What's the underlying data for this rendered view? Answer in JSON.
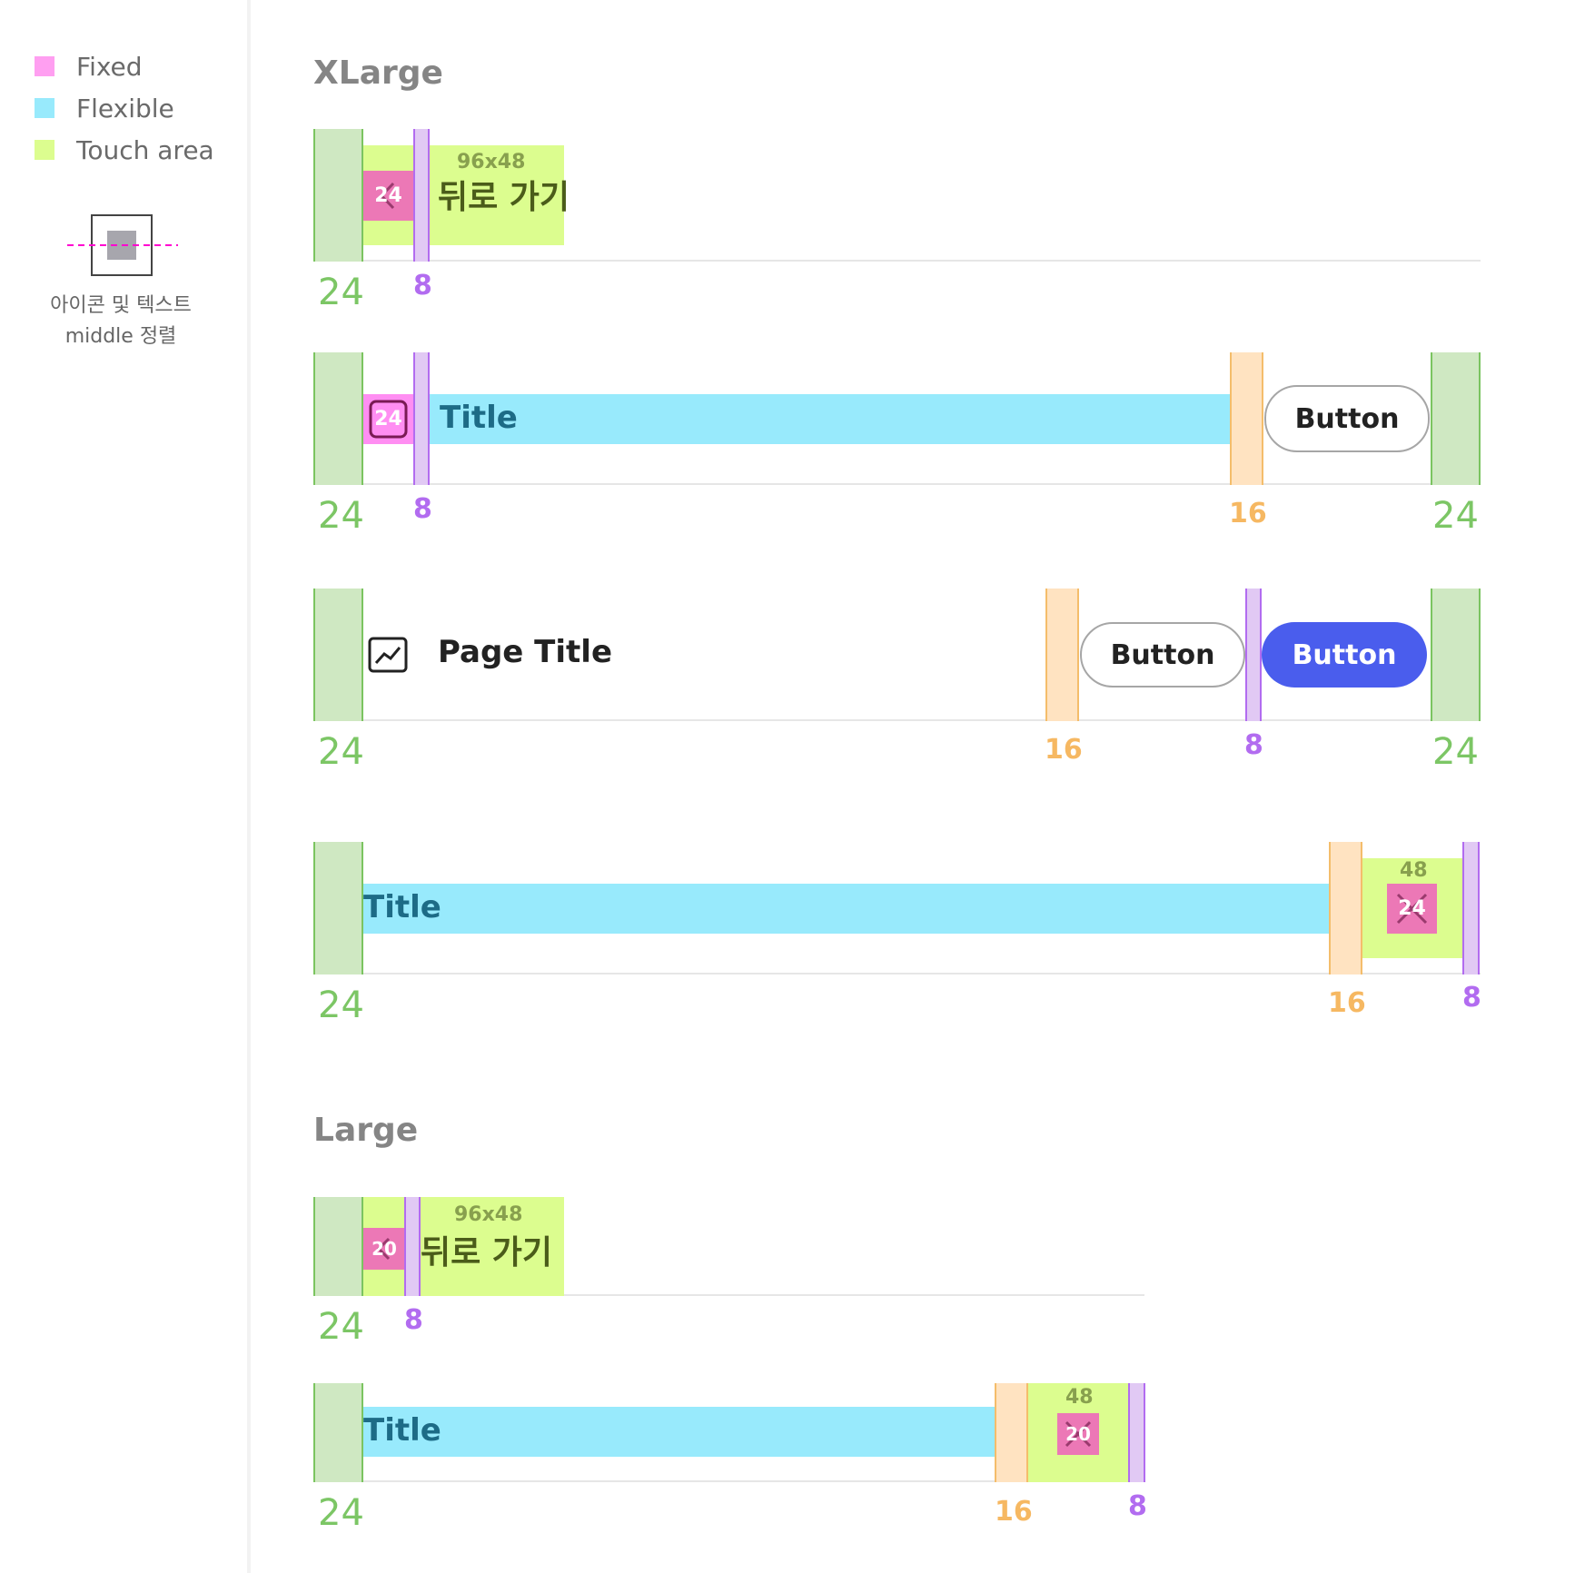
{
  "legend": {
    "items": [
      {
        "label": "Fixed",
        "color": "#ff9ff1"
      },
      {
        "label": "Flexible",
        "color": "#98eafc"
      },
      {
        "label": "Touch area",
        "color": "#dcfd8f"
      }
    ],
    "align_note_line1": "아이콘 및 텍스트",
    "align_note_line2": "middle 정렬"
  },
  "sections": {
    "xlarge": "XLarge",
    "large": "Large"
  },
  "xlarge": {
    "row1": {
      "padding": "24",
      "gap": "8",
      "touch_size": "96x48",
      "icon_size": "24",
      "label": "뒤로 가기"
    },
    "row2": {
      "padding_left": "24",
      "gap": "8",
      "icon_size": "24",
      "title": "Title",
      "gap_button": "16",
      "button": "Button",
      "padding_right": "24"
    },
    "row3": {
      "padding_left": "24",
      "page_title": "Page Title",
      "gap_buttons": "16",
      "button_secondary": "Button",
      "gap_between": "8",
      "button_primary": "Button",
      "padding_right": "24"
    },
    "row4": {
      "padding_left": "24",
      "title": "Title",
      "gap": "16",
      "touch_size": "48",
      "icon_size": "24",
      "padding_right": "8"
    }
  },
  "large": {
    "row1": {
      "padding": "24",
      "gap": "8",
      "touch_size": "96x48",
      "icon_size": "20",
      "label": "뒤로 가기"
    },
    "row2": {
      "padding_left": "24",
      "title": "Title",
      "gap": "16",
      "touch_size": "48",
      "icon_size": "20",
      "padding_right": "8"
    }
  },
  "colors": {
    "padding": "#7cc665",
    "gap": "#b26cf0",
    "button_gap": "#f6b862",
    "primary_button": "#4a5ded",
    "fixed_icon": "#ec78b6",
    "guide_line": "#ff00d0"
  }
}
